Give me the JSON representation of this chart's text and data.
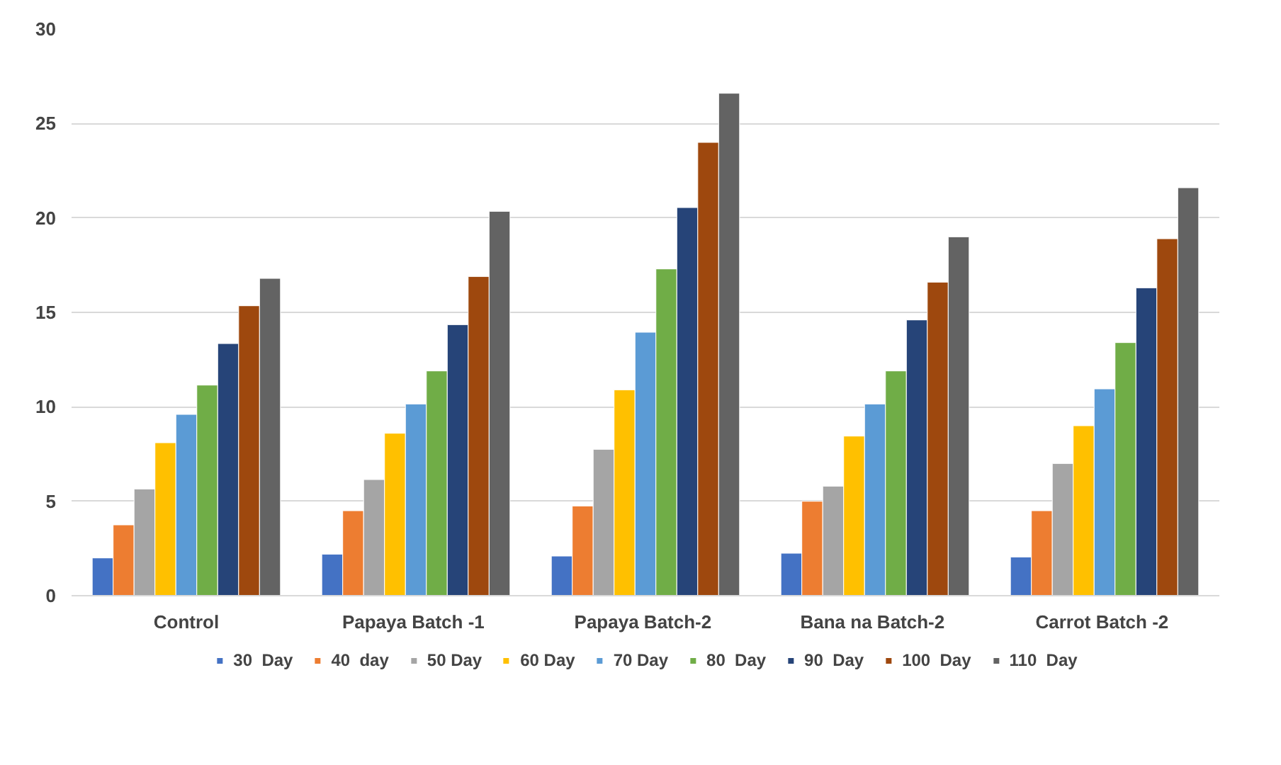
{
  "chart_data": {
    "type": "bar",
    "categories": [
      "Control",
      "Papaya  Batch -1",
      "Papaya  Batch-2",
      "Bana na  Batch-2",
      "Carrot  Batch -2"
    ],
    "ylim": [
      0,
      30
    ],
    "yticks": [
      0,
      5,
      10,
      15,
      20,
      25,
      30
    ],
    "grid": "y",
    "legend": "bottom",
    "series": [
      {
        "name": "30  Day",
        "color": "#4472c4",
        "values": [
          2.0,
          2.2,
          2.1,
          2.25,
          2.05
        ]
      },
      {
        "name": "40  day",
        "color": "#ed7d31",
        "values": [
          3.75,
          4.5,
          4.75,
          5.0,
          4.5
        ]
      },
      {
        "name": "50 Day",
        "color": "#a5a5a5",
        "values": [
          5.65,
          6.15,
          7.75,
          5.8,
          7.0
        ]
      },
      {
        "name": "60 Day",
        "color": "#ffc000",
        "values": [
          8.1,
          8.6,
          10.9,
          8.45,
          9.0
        ]
      },
      {
        "name": "70 Day",
        "color": "#5b9bd5",
        "values": [
          9.6,
          10.15,
          13.95,
          10.15,
          10.95
        ]
      },
      {
        "name": "80  Day",
        "color": "#70ad47",
        "values": [
          11.15,
          11.9,
          17.3,
          11.9,
          13.4
        ]
      },
      {
        "name": "90  Day",
        "color": "#264478",
        "values": [
          13.35,
          14.35,
          20.55,
          14.6,
          16.3
        ]
      },
      {
        "name": "100  Day",
        "color": "#9e480e",
        "values": [
          15.35,
          16.9,
          24.0,
          16.6,
          18.9
        ]
      },
      {
        "name": "110  Day",
        "color": "#636363",
        "values": [
          16.8,
          20.35,
          26.6,
          19.0,
          21.6
        ]
      }
    ]
  }
}
